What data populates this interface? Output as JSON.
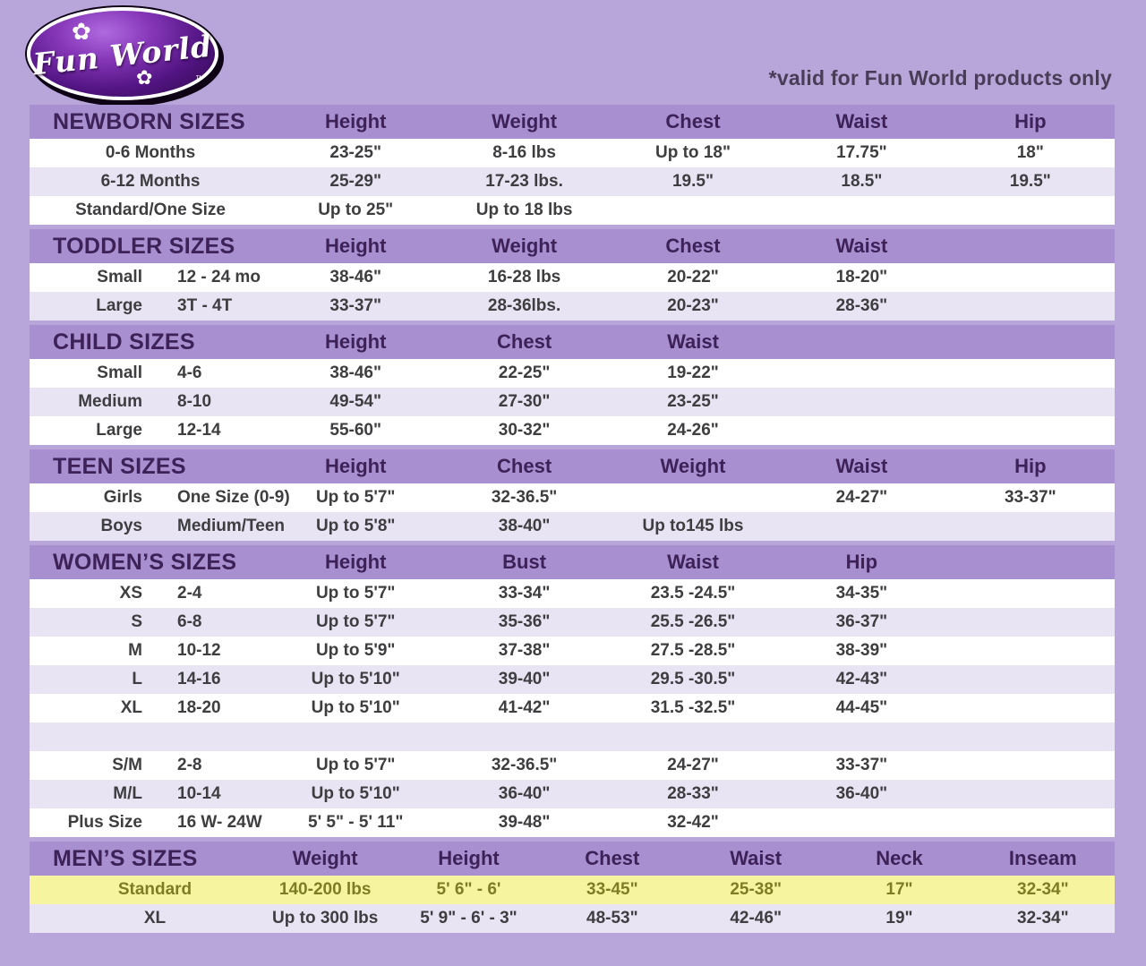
{
  "page": {
    "valid_note": "*valid for Fun World products only",
    "logo": {
      "brand": "Fun World",
      "tm": "™",
      "flower_icon": "✿"
    }
  },
  "colors": {
    "background": "#b8a5da",
    "section_band": "#a88fd0",
    "band_text": "#3d2258",
    "row_white": "#ffffff",
    "row_alt": "#e9e4f3",
    "data_text": "#3e3e40",
    "highlight_row_bg": "#f7f49f",
    "highlight_row_text": "#7d7d26"
  },
  "sections": [
    {
      "id": "newborn",
      "title": "NEWBORN SIZES",
      "layout": "standard",
      "columns": [
        "Height",
        "Weight",
        "Chest",
        "Waist",
        "Hip"
      ],
      "rows": [
        {
          "label": "",
          "detail": "0-6 Months",
          "values": [
            "23-25\"",
            "8-16 lbs",
            "Up to 18\"",
            "17.75\"",
            "18\""
          ]
        },
        {
          "label": "",
          "detail": "6-12 Months",
          "values": [
            "25-29\"",
            "17-23 lbs.",
            "19.5\"",
            "18.5\"",
            "19.5\""
          ]
        },
        {
          "label": "",
          "detail": "Standard/One Size",
          "values": [
            "Up to 25\"",
            "Up to 18 lbs",
            "",
            "",
            ""
          ]
        }
      ]
    },
    {
      "id": "toddler",
      "title": "TODDLER SIZES",
      "layout": "standard",
      "columns": [
        "Height",
        "Weight",
        "Chest",
        "Waist",
        ""
      ],
      "rows": [
        {
          "label": "Small",
          "detail": "12 - 24 mo",
          "values": [
            "38-46\"",
            "16-28 lbs",
            "20-22\"",
            "18-20\"",
            ""
          ]
        },
        {
          "label": "Large",
          "detail": "3T - 4T",
          "values": [
            "33-37\"",
            "28-36lbs.",
            "20-23\"",
            "28-36\"",
            ""
          ]
        }
      ]
    },
    {
      "id": "child",
      "title": "CHILD SIZES",
      "layout": "standard",
      "columns": [
        "Height",
        "Chest",
        "Waist",
        "",
        ""
      ],
      "rows": [
        {
          "label": "Small",
          "detail": "4-6",
          "values": [
            "38-46\"",
            "22-25\"",
            "19-22\"",
            "",
            ""
          ]
        },
        {
          "label": "Medium",
          "detail": "8-10",
          "values": [
            "49-54\"",
            "27-30\"",
            "23-25\"",
            "",
            ""
          ]
        },
        {
          "label": "Large",
          "detail": "12-14",
          "values": [
            "55-60\"",
            "30-32\"",
            "24-26\"",
            "",
            ""
          ]
        }
      ]
    },
    {
      "id": "teen",
      "title": "TEEN SIZES",
      "layout": "standard",
      "columns": [
        "Height",
        "Chest",
        "Weight",
        "Waist",
        "Hip"
      ],
      "rows": [
        {
          "label": "Girls",
          "detail": "One Size (0-9)",
          "values": [
            "Up to 5'7\"",
            "32-36.5\"",
            "",
            "24-27\"",
            "33-37\""
          ]
        },
        {
          "label": "Boys",
          "detail": "Medium/Teen",
          "values": [
            "Up to 5'8\"",
            "38-40\"",
            "Up to145 lbs",
            "",
            ""
          ]
        }
      ]
    },
    {
      "id": "womens",
      "title": "WOMEN’S SIZES",
      "layout": "standard",
      "columns": [
        "Height",
        "Bust",
        "Waist",
        "Hip",
        ""
      ],
      "rows": [
        {
          "label": "XS",
          "detail": "2-4",
          "values": [
            "Up to 5'7\"",
            "33-34\"",
            "23.5 -24.5\"",
            "34-35\"",
            ""
          ]
        },
        {
          "label": "S",
          "detail": "6-8",
          "values": [
            "Up to 5'7\"",
            "35-36\"",
            "25.5 -26.5\"",
            "36-37\"",
            ""
          ]
        },
        {
          "label": "M",
          "detail": "10-12",
          "values": [
            "Up to 5'9\"",
            "37-38\"",
            "27.5 -28.5\"",
            "38-39\"",
            ""
          ]
        },
        {
          "label": "L",
          "detail": "14-16",
          "values": [
            "Up to 5'10\"",
            "39-40\"",
            "29.5 -30.5\"",
            "42-43\"",
            ""
          ]
        },
        {
          "label": "XL",
          "detail": "18-20",
          "values": [
            "Up to 5'10\"",
            "41-42\"",
            "31.5 -32.5\"",
            "44-45\"",
            ""
          ]
        },
        {
          "spacer": true
        },
        {
          "label": "S/M",
          "detail": "2-8",
          "values": [
            "Up to 5'7\"",
            "32-36.5\"",
            "24-27\"",
            "33-37\"",
            ""
          ]
        },
        {
          "label": "M/L",
          "detail": "10-14",
          "values": [
            "Up to 5'10\"",
            "36-40\"",
            "28-33\"",
            "36-40\"",
            ""
          ]
        },
        {
          "label": "Plus Size",
          "detail": "16 W- 24W",
          "values": [
            "5' 5\" - 5' 11\"",
            "39-48\"",
            "32-42\"",
            "",
            ""
          ]
        }
      ]
    },
    {
      "id": "mens",
      "title": "MEN’S SIZES",
      "layout": "men",
      "columns": [
        "Weight",
        "Height",
        "Chest",
        "Waist",
        "Neck",
        "Inseam"
      ],
      "rows": [
        {
          "label": "",
          "detail": "Standard",
          "highlight": true,
          "values": [
            "140-200 lbs",
            "5' 6\" - 6'",
            "33-45\"",
            "25-38\"",
            "17\"",
            "32-34\""
          ]
        },
        {
          "label": "",
          "detail": "XL",
          "values": [
            "Up to 300 lbs",
            "5' 9\" - 6' - 3\"",
            "48-53\"",
            "42-46\"",
            "19\"",
            "32-34\""
          ]
        }
      ]
    }
  ]
}
